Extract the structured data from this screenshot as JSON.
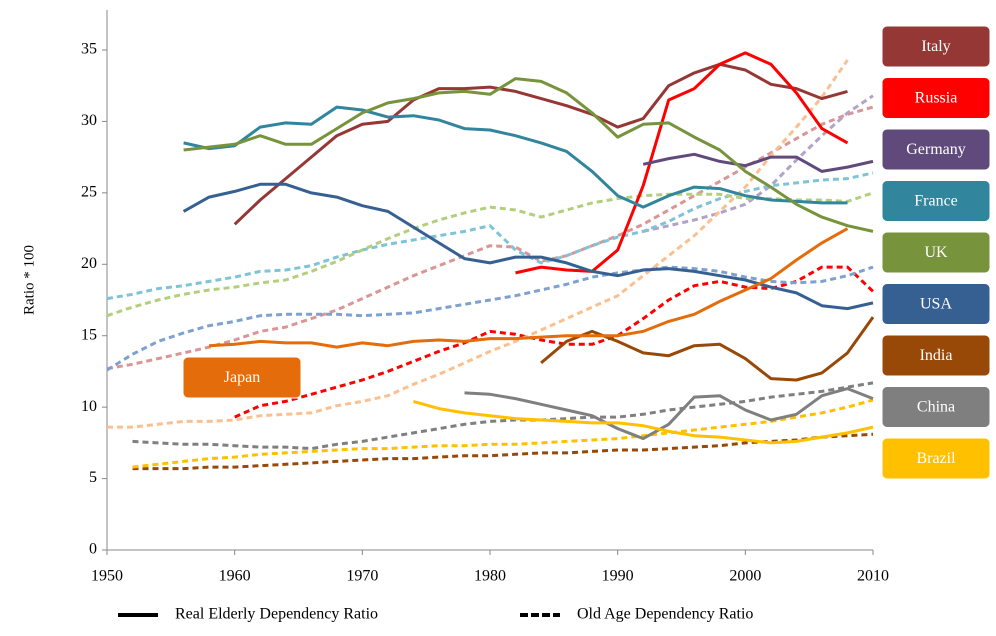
{
  "chart_data": {
    "type": "line",
    "y_label": "Ratio * 100",
    "x": [
      1950,
      1952,
      1954,
      1956,
      1958,
      1960,
      1962,
      1964,
      1966,
      1968,
      1970,
      1972,
      1974,
      1976,
      1978,
      1980,
      1982,
      1984,
      1986,
      1988,
      1990,
      1992,
      1994,
      1996,
      1998,
      2000,
      2002,
      2004,
      2006,
      2008,
      2010
    ],
    "xlim": [
      1950,
      2010
    ],
    "xticks": [
      1950,
      1960,
      1970,
      1980,
      1990,
      2000,
      2010
    ],
    "ylim": [
      0,
      37.8
    ],
    "yticks": [
      0,
      5,
      10,
      15,
      20,
      25,
      30,
      35
    ],
    "line_styles": [
      {
        "name": "Real Elderly Dependency Ratio",
        "dash": "solid"
      },
      {
        "name": "Old Age Dependency Ratio",
        "dash": "dashed"
      }
    ],
    "series": [
      {
        "name": "Italy",
        "color": "#953735",
        "dash_color": "#d99694",
        "lines": [
          [
            null,
            null,
            null,
            null,
            null,
            22.8,
            24.5,
            26,
            27.5,
            29,
            29.8,
            30,
            31.5,
            32.3,
            32.3,
            32.4,
            32.1,
            31.6,
            31.1,
            30.5,
            29.6,
            30.2,
            32.5,
            33.4,
            34,
            33.6,
            32.6,
            32.3,
            31.6,
            32.1,
            null
          ],
          [
            12.7,
            13,
            13.4,
            13.8,
            14.2,
            14.7,
            15.3,
            15.6,
            16.2,
            16.8,
            17.6,
            18.4,
            19.2,
            19.9,
            20.6,
            21.3,
            21.2,
            20.2,
            20.6,
            21.3,
            22,
            22.8,
            23.8,
            24.8,
            25.8,
            26.8,
            27.8,
            28.8,
            29.8,
            30.5,
            31
          ]
        ]
      },
      {
        "name": "Russia",
        "color": "#ff0000",
        "dash_color": "#ff0000",
        "lines": [
          [
            null,
            null,
            null,
            null,
            null,
            null,
            null,
            null,
            null,
            null,
            null,
            null,
            null,
            null,
            null,
            null,
            19.4,
            19.8,
            19.6,
            19.5,
            21,
            25.5,
            31.5,
            32.3,
            34,
            34.8,
            34,
            32,
            29.5,
            28.5,
            null
          ],
          [
            null,
            null,
            null,
            null,
            null,
            9.3,
            10.1,
            10.4,
            10.9,
            11.4,
            11.9,
            12.5,
            13.2,
            13.9,
            14.5,
            15.3,
            15.1,
            14.7,
            14.4,
            14.4,
            15,
            16.2,
            17.5,
            18.5,
            18.8,
            18.4,
            18.3,
            18.8,
            19.8,
            19.8,
            18.1
          ]
        ]
      },
      {
        "name": "Germany",
        "color": "#604a7b",
        "dash_color": "#b3a2c7",
        "lines": [
          [
            null,
            null,
            null,
            null,
            null,
            null,
            null,
            null,
            null,
            null,
            null,
            null,
            null,
            null,
            null,
            null,
            null,
            null,
            null,
            null,
            null,
            27,
            27.4,
            27.7,
            27.2,
            26.9,
            27.5,
            27.5,
            26.5,
            26.8,
            27.2
          ],
          [
            null,
            null,
            null,
            null,
            null,
            null,
            null,
            null,
            null,
            null,
            null,
            null,
            null,
            null,
            null,
            null,
            null,
            null,
            null,
            null,
            null,
            22.3,
            22.7,
            23.1,
            23.6,
            24.2,
            25.5,
            27.3,
            29,
            30.6,
            31.8
          ]
        ]
      },
      {
        "name": "France",
        "color": "#31859c",
        "dash_color": "#7dc4d6",
        "lines": [
          [
            null,
            null,
            null,
            28.5,
            28.1,
            28.3,
            29.6,
            29.9,
            29.8,
            31,
            30.8,
            30.3,
            30.4,
            30.1,
            29.5,
            29.4,
            29,
            28.5,
            27.9,
            26.5,
            24.8,
            24,
            24.8,
            25.4,
            25.3,
            24.8,
            24.5,
            24.4,
            24.3,
            24.3,
            null
          ],
          [
            17.6,
            17.9,
            18.3,
            18.5,
            18.8,
            19.1,
            19.5,
            19.6,
            19.9,
            20.5,
            21,
            21.4,
            21.7,
            22,
            22.3,
            22.7,
            21,
            20.1,
            20.6,
            21.3,
            21.9,
            22.3,
            23,
            23.9,
            24.6,
            25.1,
            25.5,
            25.7,
            25.9,
            26,
            26.4
          ]
        ]
      },
      {
        "name": "UK",
        "color": "#77933c",
        "dash_color": "#b3cf7e",
        "lines": [
          [
            null,
            null,
            null,
            28,
            28.2,
            28.4,
            29,
            28.4,
            28.4,
            29.5,
            30.6,
            31.3,
            31.6,
            32,
            32.1,
            31.9,
            33,
            32.8,
            32,
            30.6,
            28.9,
            29.8,
            29.9,
            28.9,
            28,
            26.5,
            25.4,
            24.2,
            23.3,
            22.7,
            22.3
          ],
          [
            16.4,
            17,
            17.5,
            17.9,
            18.2,
            18.4,
            18.7,
            18.9,
            19.5,
            20.2,
            21,
            21.8,
            22.5,
            23.1,
            23.6,
            24,
            23.8,
            23.3,
            23.8,
            24.3,
            24.6,
            24.8,
            24.9,
            24.9,
            24.9,
            24.6,
            24.6,
            24.5,
            24.5,
            24.4,
            25
          ]
        ]
      },
      {
        "name": "USA",
        "color": "#376092",
        "dash_color": "#7ea1cf",
        "lines": [
          [
            null,
            null,
            null,
            23.7,
            24.7,
            25.1,
            25.6,
            25.6,
            25,
            24.7,
            24.1,
            23.7,
            22.6,
            21.5,
            20.4,
            20.1,
            20.5,
            20.5,
            20.1,
            19.5,
            19.2,
            19.6,
            19.7,
            19.5,
            19.2,
            18.9,
            18.4,
            18,
            17.1,
            16.9,
            17.3
          ],
          [
            12.6,
            13.7,
            14.6,
            15.2,
            15.7,
            16,
            16.4,
            16.5,
            16.5,
            16.5,
            16.4,
            16.5,
            16.6,
            16.9,
            17.2,
            17.5,
            17.8,
            18.2,
            18.6,
            19.1,
            19.4,
            19.6,
            19.8,
            19.7,
            19.5,
            19.1,
            18.8,
            18.7,
            18.8,
            19.2,
            19.8
          ]
        ]
      },
      {
        "name": "India",
        "color": "#984807",
        "dash_color": "#984807",
        "lines": [
          [
            null,
            null,
            null,
            null,
            null,
            null,
            null,
            null,
            null,
            null,
            null,
            null,
            null,
            null,
            null,
            null,
            null,
            13.1,
            14.6,
            15.3,
            14.6,
            13.8,
            13.6,
            14.3,
            14.4,
            13.4,
            12,
            11.9,
            12.4,
            13.8,
            16.3
          ],
          [
            null,
            5.7,
            5.7,
            5.7,
            5.8,
            5.8,
            5.9,
            6,
            6.1,
            6.2,
            6.3,
            6.4,
            6.4,
            6.5,
            6.6,
            6.6,
            6.7,
            6.8,
            6.8,
            6.9,
            7,
            7,
            7.1,
            7.2,
            7.3,
            7.5,
            7.6,
            7.7,
            7.9,
            8,
            8.1
          ]
        ]
      },
      {
        "name": "China",
        "color": "#7f7f7f",
        "dash_color": "#7f7f7f",
        "lines": [
          [
            null,
            null,
            null,
            null,
            null,
            null,
            null,
            null,
            null,
            null,
            null,
            null,
            null,
            null,
            11,
            10.9,
            10.6,
            10.2,
            9.8,
            9.4,
            8.5,
            7.8,
            8.8,
            10.7,
            10.8,
            9.8,
            9.1,
            9.5,
            10.8,
            11.3,
            10.6
          ],
          [
            null,
            7.6,
            7.5,
            7.4,
            7.4,
            7.3,
            7.2,
            7.2,
            7.1,
            7.4,
            7.6,
            7.9,
            8.2,
            8.5,
            8.8,
            9,
            9.1,
            9.1,
            9.2,
            9.3,
            9.3,
            9.5,
            9.8,
            10,
            10.2,
            10.4,
            10.7,
            10.9,
            11.1,
            11.4,
            11.7
          ]
        ]
      },
      {
        "name": "Brazil",
        "color": "#ffc000",
        "dash_color": "#ffc000",
        "lines": [
          [
            null,
            null,
            null,
            null,
            null,
            null,
            null,
            null,
            null,
            null,
            null,
            null,
            10.4,
            9.9,
            9.6,
            9.4,
            9.2,
            9.1,
            9,
            8.9,
            8.9,
            8.7,
            8.3,
            8,
            7.9,
            7.7,
            7.5,
            7.6,
            7.9,
            8.2,
            8.6
          ],
          [
            null,
            5.8,
            6,
            6.2,
            6.4,
            6.5,
            6.7,
            6.8,
            6.9,
            7,
            7.1,
            7.1,
            7.2,
            7.3,
            7.3,
            7.4,
            7.4,
            7.5,
            7.6,
            7.7,
            7.8,
            8,
            8.2,
            8.4,
            8.6,
            8.8,
            9,
            9.3,
            9.6,
            10,
            10.5
          ]
        ]
      },
      {
        "name": "Japan",
        "color": "#e46c0a",
        "dash_color": "#fac090",
        "lines": [
          [
            null,
            null,
            null,
            null,
            14.3,
            14.4,
            14.6,
            14.5,
            14.5,
            14.2,
            14.5,
            14.3,
            14.6,
            14.7,
            14.6,
            14.8,
            14.8,
            14.9,
            15,
            15,
            15,
            15.3,
            16,
            16.5,
            17.4,
            18.2,
            19,
            20.3,
            21.5,
            22.5,
            null
          ],
          [
            8.6,
            8.6,
            8.8,
            9,
            9,
            9.1,
            9.4,
            9.5,
            9.6,
            10.1,
            10.4,
            10.8,
            11.6,
            12.3,
            13.1,
            13.9,
            14.6,
            15.4,
            16.2,
            17,
            17.8,
            19.2,
            20.6,
            22,
            23.7,
            25.4,
            27.6,
            29.6,
            31.7,
            34.3,
            null
          ]
        ]
      }
    ]
  }
}
